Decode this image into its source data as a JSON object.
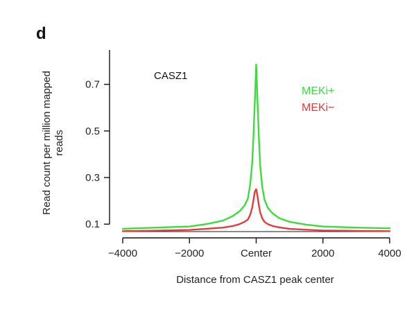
{
  "chart_data": {
    "type": "line",
    "panel_label": "d",
    "annotation": "CASZ1",
    "xlabel": "Distance from CASZ1 peak center",
    "ylabel_lines": [
      "Read count per million mapped",
      "reads"
    ],
    "xlim": [
      -4000,
      4000
    ],
    "ylim": [
      0.05,
      0.8
    ],
    "x_ticks": [
      -4000,
      -2000,
      0,
      2000,
      4000
    ],
    "x_tick_labels": [
      "-4000",
      "-2000",
      "Center",
      "2000",
      "4000"
    ],
    "y_ticks": [
      0.1,
      0.3,
      0.5,
      0.7
    ],
    "y_tick_labels": [
      "0.1",
      "0.3",
      "0.5",
      "0.7"
    ],
    "x": [
      -4000,
      -3000,
      -2000,
      -1500,
      -1000,
      -700,
      -500,
      -350,
      -250,
      -180,
      -120,
      -80,
      -40,
      0,
      40,
      80,
      120,
      180,
      250,
      350,
      500,
      700,
      1000,
      1500,
      2000,
      3000,
      4000
    ],
    "series": [
      {
        "name": "MEKi+",
        "color": "#3ddc3d",
        "values": [
          0.08,
          0.085,
          0.09,
          0.1,
          0.115,
          0.135,
          0.155,
          0.18,
          0.21,
          0.27,
          0.36,
          0.48,
          0.63,
          0.785,
          0.63,
          0.47,
          0.35,
          0.26,
          0.205,
          0.17,
          0.145,
          0.125,
          0.11,
          0.098,
          0.09,
          0.085,
          0.082
        ]
      },
      {
        "name": "MEKi−",
        "color": "#e23b3b",
        "values": [
          0.07,
          0.072,
          0.075,
          0.08,
          0.085,
          0.092,
          0.1,
          0.11,
          0.12,
          0.14,
          0.17,
          0.205,
          0.24,
          0.25,
          0.22,
          0.18,
          0.15,
          0.125,
          0.11,
          0.1,
          0.092,
          0.086,
          0.08,
          0.076,
          0.073,
          0.071,
          0.07
        ]
      }
    ]
  }
}
